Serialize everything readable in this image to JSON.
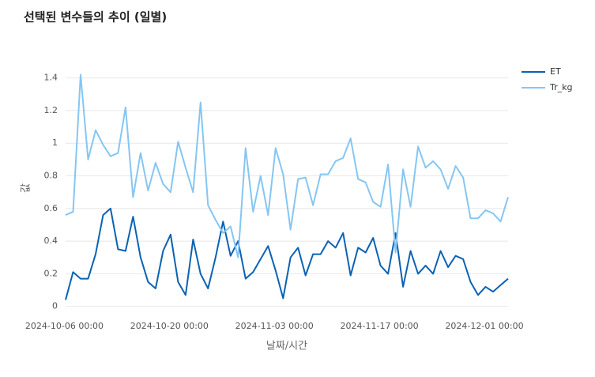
{
  "chart_data": {
    "type": "line",
    "title": "선택된 변수들의 추이 (일별)",
    "x_label": "날짜/시간",
    "y_label": "값",
    "x": [
      "2024-10-03 00:00",
      "2024-10-04 00:00",
      "2024-10-05 00:00",
      "2024-10-06 00:00",
      "2024-10-07 00:00",
      "2024-10-08 00:00",
      "2024-10-09 00:00",
      "2024-10-10 00:00",
      "2024-10-11 00:00",
      "2024-10-12 00:00",
      "2024-10-13 00:00",
      "2024-10-14 00:00",
      "2024-10-15 00:00",
      "2024-10-16 00:00",
      "2024-10-17 00:00",
      "2024-10-18 00:00",
      "2024-10-19 00:00",
      "2024-10-20 00:00",
      "2024-10-21 00:00",
      "2024-10-22 00:00",
      "2024-10-23 00:00",
      "2024-10-24 00:00",
      "2024-10-25 00:00",
      "2024-10-26 00:00",
      "2024-10-27 00:00",
      "2024-10-28 00:00",
      "2024-10-29 00:00",
      "2024-10-30 00:00",
      "2024-10-31 00:00",
      "2024-11-01 00:00",
      "2024-11-02 00:00",
      "2024-11-03 00:00",
      "2024-11-04 00:00",
      "2024-11-05 00:00",
      "2024-11-06 00:00",
      "2024-11-07 00:00",
      "2024-11-08 00:00",
      "2024-11-09 00:00",
      "2024-11-10 00:00",
      "2024-11-11 00:00",
      "2024-11-12 00:00",
      "2024-11-13 00:00",
      "2024-11-14 00:00",
      "2024-11-15 00:00",
      "2024-11-16 00:00",
      "2024-11-17 00:00",
      "2024-11-18 00:00",
      "2024-11-19 00:00",
      "2024-11-20 00:00",
      "2024-11-21 00:00",
      "2024-11-22 00:00",
      "2024-11-23 00:00",
      "2024-11-24 00:00",
      "2024-11-25 00:00",
      "2024-11-26 00:00",
      "2024-11-27 00:00",
      "2024-11-28 00:00",
      "2024-11-29 00:00",
      "2024-11-30 00:00",
      "2024-12-01 00:00"
    ],
    "series": [
      {
        "name": "ET",
        "color": "#0b62b3",
        "values": [
          0.04,
          0.21,
          0.17,
          0.17,
          0.32,
          0.56,
          0.6,
          0.35,
          0.34,
          0.55,
          0.3,
          0.15,
          0.11,
          0.34,
          0.44,
          0.15,
          0.07,
          0.41,
          0.2,
          0.11,
          0.3,
          0.52,
          0.31,
          0.4,
          0.17,
          0.21,
          0.29,
          0.37,
          0.22,
          0.05,
          0.3,
          0.36,
          0.19,
          0.32,
          0.32,
          0.4,
          0.36,
          0.45,
          0.19,
          0.36,
          0.33,
          0.42,
          0.25,
          0.2,
          0.45,
          0.12,
          0.34,
          0.2,
          0.25,
          0.2,
          0.34,
          0.24,
          0.31,
          0.29,
          0.15,
          0.07,
          0.12,
          0.09,
          0.13,
          0.17
        ]
      },
      {
        "name": "Tr_kg",
        "color": "#85c6f2",
        "values": [
          0.56,
          0.58,
          1.42,
          0.9,
          1.08,
          0.99,
          0.92,
          0.94,
          1.22,
          0.67,
          0.94,
          0.71,
          0.88,
          0.75,
          0.7,
          1.01,
          0.85,
          0.7,
          1.25,
          0.62,
          0.53,
          0.45,
          0.49,
          0.3,
          0.97,
          0.58,
          0.8,
          0.56,
          0.97,
          0.81,
          0.47,
          0.78,
          0.79,
          0.62,
          0.81,
          0.81,
          0.89,
          0.91,
          1.03,
          0.78,
          0.76,
          0.64,
          0.61,
          0.87,
          0.33,
          0.84,
          0.61,
          0.98,
          0.85,
          0.89,
          0.84,
          0.72,
          0.86,
          0.79,
          0.54,
          0.54,
          0.59,
          0.57,
          0.52,
          0.67
        ]
      }
    ],
    "xlim": [
      "2024-10-03 00:00",
      "2024-12-01 00:00"
    ],
    "xticks": [
      "2024-10-06 00:00",
      "2024-10-20 00:00",
      "2024-11-03 00:00",
      "2024-11-17 00:00",
      "2024-12-01 00:00"
    ],
    "ylim": [
      -0.05,
      1.5
    ],
    "yticks": [
      0,
      0.2,
      0.4,
      0.6,
      0.8,
      1,
      1.2,
      1.4
    ],
    "grid": true,
    "legend": "top-right"
  }
}
